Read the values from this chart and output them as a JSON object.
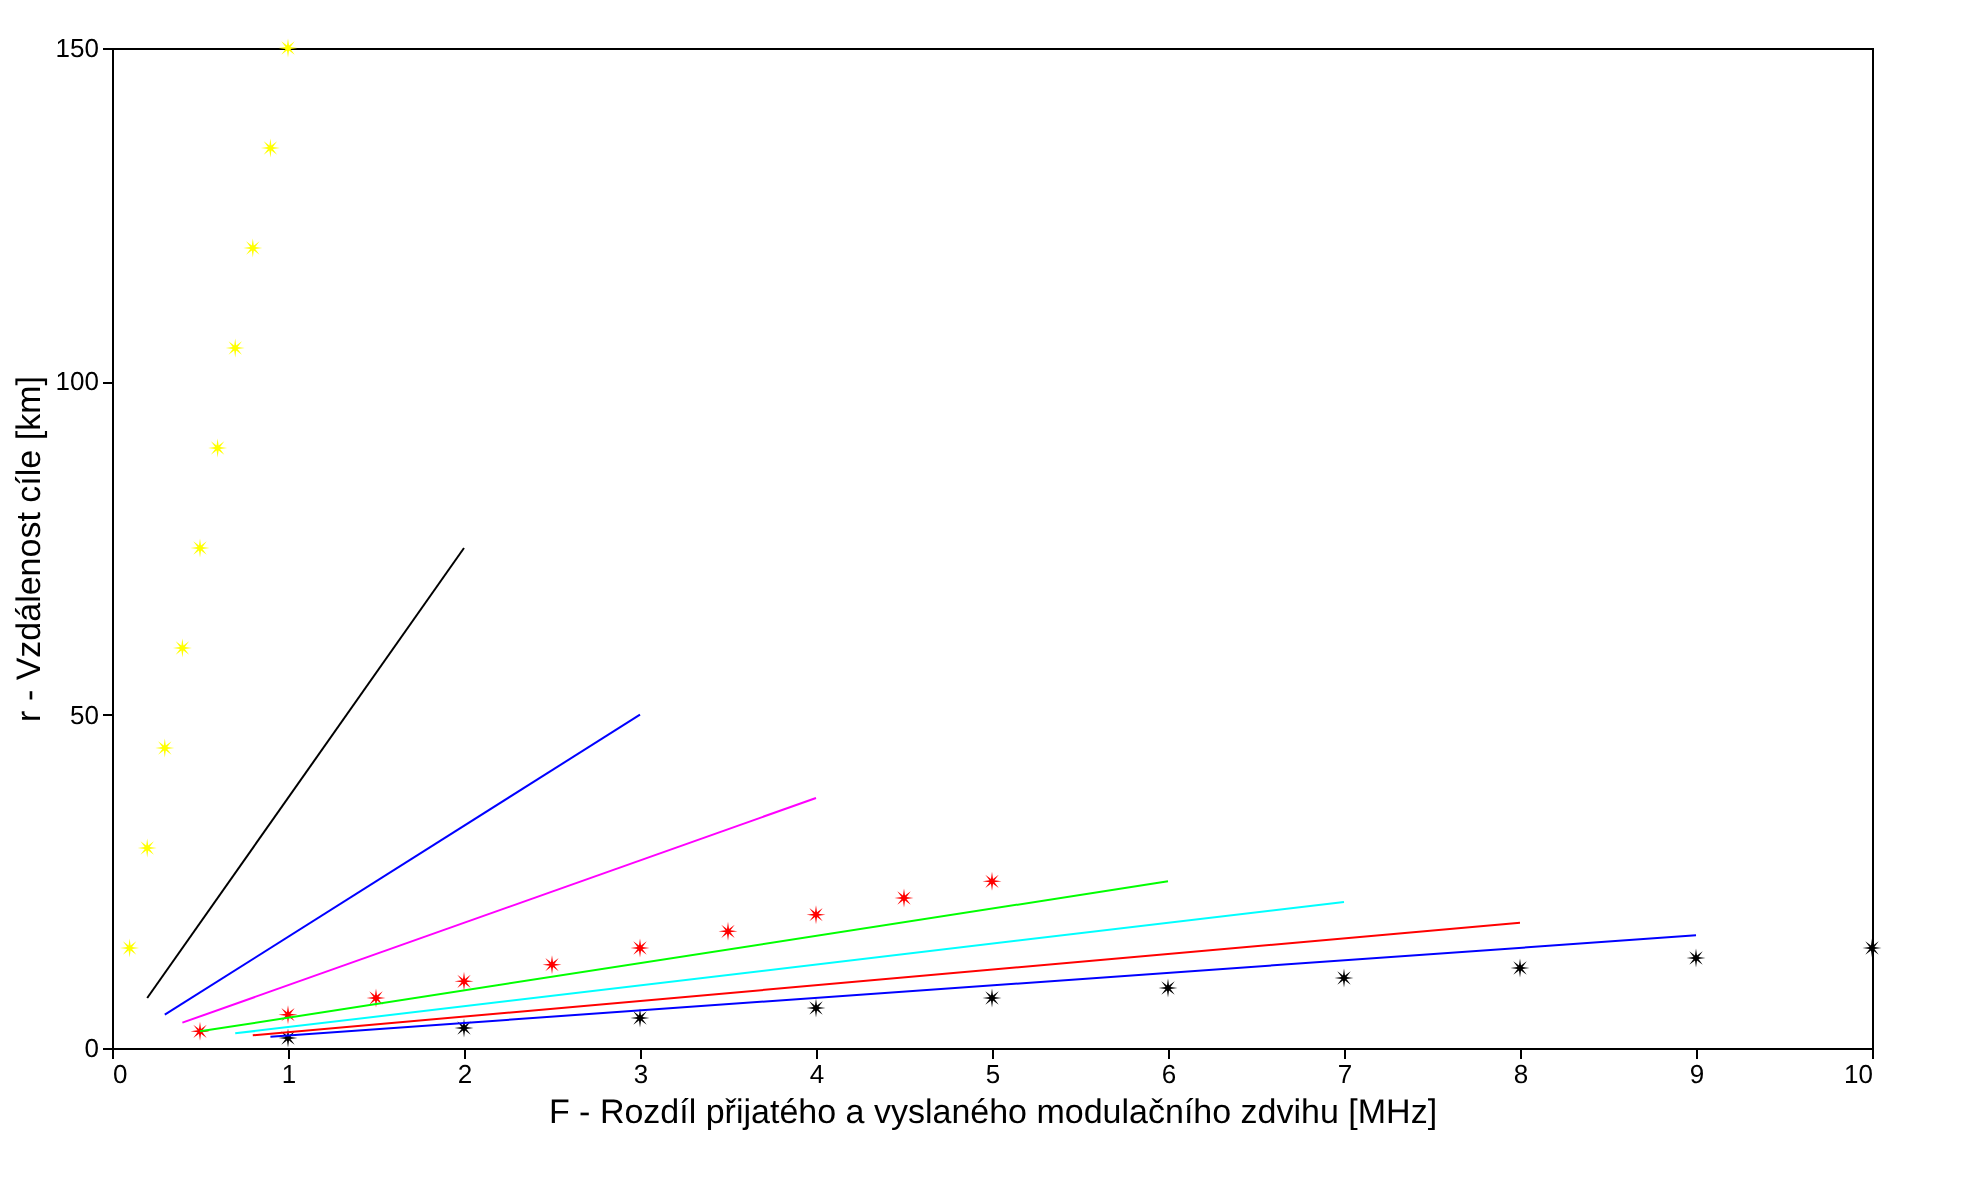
{
  "chart_data": {
    "type": "line",
    "xlabel": "F - Rozdíl přijatého a vyslaného modulačního zdvihu [MHz]",
    "ylabel": "r - Vzdálenost cíle [km]",
    "xlim": [
      0,
      10
    ],
    "ylim": [
      0,
      150
    ],
    "xticks": [
      0,
      1,
      2,
      3,
      4,
      5,
      6,
      7,
      8,
      9,
      10
    ],
    "yticks": [
      0,
      50,
      100,
      150
    ],
    "grid": false,
    "line_style": "solid",
    "series": [
      {
        "type": "scatter",
        "marker": "star",
        "color": "#ffff00",
        "x": [
          0.1,
          0.2,
          0.3,
          0.4,
          0.5,
          0.6,
          0.7,
          0.8,
          0.9,
          1.0
        ],
        "values": [
          15,
          30,
          45,
          60,
          75,
          90,
          105,
          120,
          135,
          150
        ]
      },
      {
        "type": "scatter",
        "marker": "star",
        "color": "#ff0000",
        "x": [
          0.5,
          1,
          1.5,
          2,
          2.5,
          3,
          3.5,
          4,
          4.5,
          5
        ],
        "values": [
          2.5,
          5,
          7.5,
          10,
          12.5,
          15,
          17.5,
          20,
          22.5,
          25
        ]
      },
      {
        "type": "scatter",
        "marker": "star",
        "color": "#000000",
        "x": [
          1,
          2,
          3,
          4,
          5,
          6,
          7,
          8,
          9,
          10
        ],
        "values": [
          1.5,
          3,
          4.5,
          6,
          7.5,
          9,
          10.5,
          12,
          13.5,
          15
        ]
      },
      {
        "color": "#000000",
        "x": [
          0.2,
          2
        ],
        "values": [
          7.5,
          75
        ]
      },
      {
        "color": "#0000ff",
        "x": [
          0.3,
          3
        ],
        "values": [
          5,
          50
        ]
      },
      {
        "color": "#ff00ff",
        "x": [
          0.4,
          4
        ],
        "values": [
          3.8,
          37.5
        ]
      },
      {
        "color": "#00ff00",
        "x": [
          0.5,
          6
        ],
        "values": [
          2.5,
          25
        ]
      },
      {
        "color": "#00ffff",
        "x": [
          0.7,
          7
        ],
        "values": [
          2.2,
          21.9
        ]
      },
      {
        "color": "#ff0000",
        "x": [
          0.8,
          8
        ],
        "values": [
          1.9,
          18.8
        ]
      },
      {
        "color": "#0000ff",
        "x": [
          0.9,
          9
        ],
        "values": [
          1.7,
          16.9
        ]
      }
    ]
  }
}
